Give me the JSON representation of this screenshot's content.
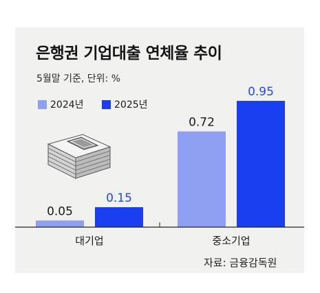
{
  "title": "은행권 기업대출 연체율 추이",
  "subtitle": "5월말 기준, 단위: %",
  "source": "자료: 금융감독원",
  "colors": {
    "background": "#f1f1ef",
    "series_2024": "#8fa0f2",
    "series_2025": "#1a3ff0",
    "label_2024": "#1a1a1a",
    "label_2025": "#2047f0"
  },
  "chart_data": {
    "type": "bar",
    "categories": [
      "대기업",
      "중소기업"
    ],
    "series": [
      {
        "name": "2024년",
        "values": [
          0.05,
          0.72
        ]
      },
      {
        "name": "2025년",
        "values": [
          0.15,
          0.95
        ]
      }
    ],
    "ylim": [
      0,
      0.95
    ],
    "legend": "top-left",
    "grid": false
  }
}
